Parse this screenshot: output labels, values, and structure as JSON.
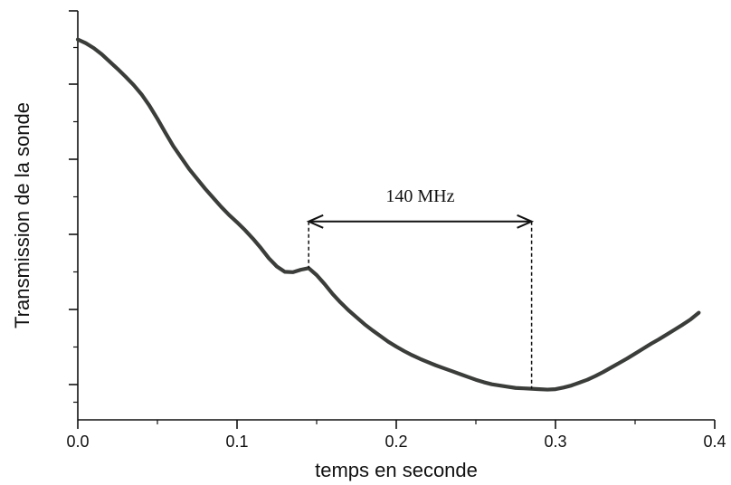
{
  "chart_data": {
    "type": "line",
    "title": "",
    "xlabel": "temps en seconde",
    "ylabel": "Transmission de la sonde",
    "xlim": [
      0.0,
      0.4
    ],
    "ylim": [
      0,
      1
    ],
    "x_ticks": [
      "0.0",
      "0.1",
      "0.2",
      "0.3",
      "0.4"
    ],
    "y_tick_labels_shown": false,
    "grid": false,
    "legend": "none",
    "line_color": "#3a3d3a",
    "series": [
      {
        "x": [
          0.0,
          0.005,
          0.01,
          0.015,
          0.02,
          0.025,
          0.03,
          0.035,
          0.04,
          0.045,
          0.05,
          0.055,
          0.06,
          0.065,
          0.07,
          0.075,
          0.08,
          0.085,
          0.09,
          0.095,
          0.1,
          0.105,
          0.11,
          0.115,
          0.12,
          0.125,
          0.13,
          0.135,
          0.14,
          0.145,
          0.15,
          0.155,
          0.16,
          0.165,
          0.17,
          0.175,
          0.18,
          0.185,
          0.19,
          0.195,
          0.2,
          0.205,
          0.21,
          0.215,
          0.22,
          0.225,
          0.23,
          0.235,
          0.24,
          0.245,
          0.25,
          0.255,
          0.26,
          0.265,
          0.27,
          0.275,
          0.28,
          0.285,
          0.29,
          0.295,
          0.3,
          0.305,
          0.31,
          0.315,
          0.32,
          0.325,
          0.33,
          0.335,
          0.34,
          0.345,
          0.35,
          0.355,
          0.36,
          0.365,
          0.37,
          0.375,
          0.38,
          0.385,
          0.39
        ],
        "values": [
          0.93,
          0.921,
          0.909,
          0.894,
          0.876,
          0.858,
          0.839,
          0.819,
          0.796,
          0.768,
          0.736,
          0.702,
          0.669,
          0.641,
          0.613,
          0.589,
          0.565,
          0.543,
          0.521,
          0.501,
          0.483,
          0.464,
          0.443,
          0.42,
          0.395,
          0.375,
          0.362,
          0.361,
          0.367,
          0.371,
          0.354,
          0.332,
          0.308,
          0.287,
          0.268,
          0.251,
          0.234,
          0.219,
          0.205,
          0.191,
          0.179,
          0.168,
          0.158,
          0.149,
          0.141,
          0.133,
          0.126,
          0.119,
          0.112,
          0.105,
          0.098,
          0.092,
          0.087,
          0.084,
          0.081,
          0.078,
          0.077,
          0.076,
          0.075,
          0.074,
          0.075,
          0.079,
          0.084,
          0.091,
          0.098,
          0.107,
          0.117,
          0.128,
          0.139,
          0.15,
          0.162,
          0.174,
          0.186,
          0.197,
          0.209,
          0.221,
          0.233,
          0.246,
          0.262
        ]
      }
    ],
    "annotations": [
      {
        "type": "double-arrow",
        "label": "140 MHz",
        "x_start": 0.145,
        "x_end": 0.285,
        "y": 0.485,
        "dashed_drops": [
          {
            "x": 0.145,
            "y_from": 0.485,
            "y_to": 0.371
          },
          {
            "x": 0.285,
            "y_from": 0.485,
            "y_to": 0.076
          }
        ]
      }
    ]
  }
}
